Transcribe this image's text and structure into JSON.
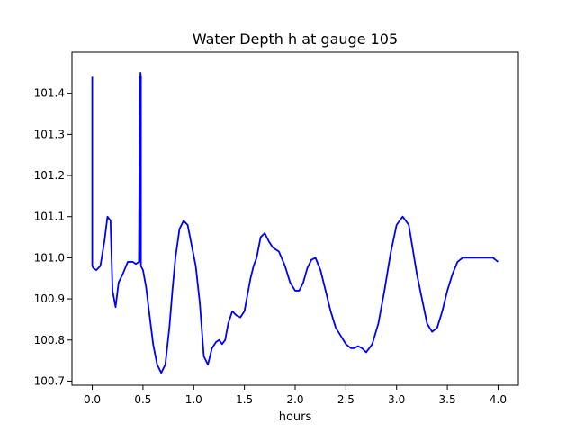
{
  "chart_data": {
    "type": "line",
    "title": "Water Depth h at gauge 105",
    "xlabel": "hours",
    "ylabel": "",
    "xlim": [
      -0.2,
      4.2
    ],
    "ylim": [
      100.69,
      101.5
    ],
    "xticks": [
      0.0,
      0.5,
      1.0,
      1.5,
      2.0,
      2.5,
      3.0,
      3.5,
      4.0
    ],
    "xtick_labels": [
      "0.0",
      "0.5",
      "1.0",
      "1.5",
      "2.0",
      "2.5",
      "3.0",
      "3.5",
      "4.0"
    ],
    "yticks": [
      100.7,
      100.8,
      100.9,
      101.0,
      101.1,
      101.2,
      101.3,
      101.4
    ],
    "ytick_labels": [
      "100.7",
      "100.8",
      "100.9",
      "101.0",
      "101.1",
      "101.2",
      "101.3",
      "101.4"
    ],
    "grid": false,
    "series": [
      {
        "color": "#0000ff",
        "x": [
          0.0,
          0.0,
          0.01,
          0.04,
          0.08,
          0.12,
          0.15,
          0.18,
          0.2,
          0.23,
          0.26,
          0.3,
          0.35,
          0.4,
          0.43,
          0.46,
          0.47,
          0.47,
          0.475,
          0.48,
          0.48,
          0.5,
          0.53,
          0.56,
          0.6,
          0.64,
          0.68,
          0.72,
          0.76,
          0.79,
          0.82,
          0.86,
          0.9,
          0.94,
          0.98,
          1.02,
          1.06,
          1.1,
          1.14,
          1.18,
          1.22,
          1.25,
          1.28,
          1.31,
          1.34,
          1.38,
          1.42,
          1.46,
          1.5,
          1.53,
          1.56,
          1.59,
          1.62,
          1.66,
          1.7,
          1.74,
          1.78,
          1.84,
          1.9,
          1.95,
          2.0,
          2.04,
          2.08,
          2.12,
          2.16,
          2.2,
          2.25,
          2.3,
          2.35,
          2.4,
          2.45,
          2.5,
          2.55,
          2.58,
          2.62,
          2.66,
          2.7,
          2.76,
          2.82,
          2.88,
          2.94,
          3.0,
          3.06,
          3.12,
          3.16,
          3.2,
          3.25,
          3.3,
          3.35,
          3.4,
          3.45,
          3.5,
          3.55,
          3.6,
          3.65,
          3.7,
          3.75,
          3.8,
          3.85,
          3.9,
          3.95,
          4.0
        ],
        "y": [
          101.44,
          100.98,
          100.975,
          100.97,
          100.98,
          101.04,
          101.1,
          101.09,
          100.92,
          100.88,
          100.94,
          100.96,
          100.99,
          100.99,
          100.985,
          100.99,
          101.44,
          100.99,
          101.45,
          101.44,
          100.98,
          100.97,
          100.93,
          100.87,
          100.79,
          100.74,
          100.72,
          100.74,
          100.83,
          100.92,
          101.0,
          101.07,
          101.09,
          101.08,
          101.03,
          100.98,
          100.89,
          100.76,
          100.74,
          100.78,
          100.795,
          100.8,
          100.79,
          100.8,
          100.84,
          100.87,
          100.86,
          100.855,
          100.87,
          100.91,
          100.95,
          100.98,
          101.0,
          101.05,
          101.06,
          101.04,
          101.025,
          101.015,
          100.98,
          100.94,
          100.92,
          100.92,
          100.94,
          100.975,
          100.995,
          101.0,
          100.97,
          100.92,
          100.87,
          100.83,
          100.81,
          100.79,
          100.78,
          100.78,
          100.785,
          100.78,
          100.77,
          100.79,
          100.84,
          100.92,
          101.01,
          101.08,
          101.1,
          101.08,
          101.02,
          100.96,
          100.9,
          100.84,
          100.82,
          100.83,
          100.87,
          100.92,
          100.96,
          100.99,
          101.0,
          101.0,
          101.0,
          101.0,
          101.0,
          101.0,
          101.0,
          100.99
        ]
      }
    ]
  }
}
